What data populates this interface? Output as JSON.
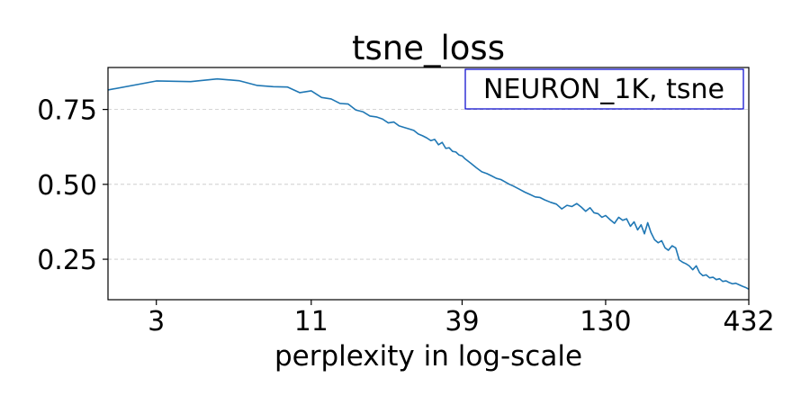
{
  "chart_data": {
    "type": "line",
    "title": "tsne_loss",
    "xlabel": "perplexity in log-scale",
    "ylabel": "",
    "x_scale": "log",
    "xlim": [
      2,
      432
    ],
    "ylim": [
      0.115,
      0.89
    ],
    "x_ticks": [
      3,
      11,
      39,
      130,
      432
    ],
    "y_ticks": [
      0.25,
      0.5,
      0.75
    ],
    "y_tick_labels": [
      "0.25",
      "0.50",
      "0.75"
    ],
    "grid": "y-dashed",
    "legend": {
      "label": "NEURON_1K, tsne",
      "placement": "top-right",
      "border_color": "#0000cc"
    },
    "series": [
      {
        "color": "#1f77b4",
        "x": [
          2,
          3,
          4,
          5,
          6,
          7,
          8,
          9,
          10,
          11,
          12,
          13,
          14,
          15,
          16,
          17,
          18,
          19,
          20,
          21,
          22,
          23,
          24,
          25,
          26,
          27,
          28,
          29,
          30,
          31,
          32,
          33,
          34,
          35,
          36,
          37,
          38,
          39,
          40,
          42,
          44,
          46,
          48,
          50,
          52,
          54,
          56,
          58,
          60,
          63,
          66,
          69,
          72,
          75,
          78,
          82,
          86,
          90,
          94,
          98,
          102,
          106,
          110,
          114,
          118,
          122,
          126,
          130,
          135,
          140,
          145,
          150,
          155,
          160,
          165,
          170,
          175,
          180,
          185,
          190,
          196,
          202,
          208,
          214,
          220,
          227,
          234,
          241,
          248,
          255,
          262,
          270,
          278,
          286,
          294,
          302,
          311,
          320,
          329,
          338,
          347,
          357,
          367,
          377,
          387,
          398,
          409,
          420,
          432
        ],
        "y": [
          0.815,
          0.845,
          0.843,
          0.852,
          0.846,
          0.83,
          0.826,
          0.825,
          0.806,
          0.812,
          0.79,
          0.785,
          0.77,
          0.768,
          0.748,
          0.742,
          0.728,
          0.725,
          0.718,
          0.705,
          0.708,
          0.695,
          0.69,
          0.685,
          0.68,
          0.668,
          0.662,
          0.655,
          0.646,
          0.65,
          0.632,
          0.64,
          0.62,
          0.622,
          0.61,
          0.608,
          0.598,
          0.595,
          0.585,
          0.57,
          0.555,
          0.542,
          0.536,
          0.528,
          0.52,
          0.516,
          0.508,
          0.5,
          0.494,
          0.484,
          0.474,
          0.466,
          0.458,
          0.456,
          0.448,
          0.44,
          0.434,
          0.418,
          0.43,
          0.426,
          0.436,
          0.424,
          0.41,
          0.422,
          0.405,
          0.402,
          0.39,
          0.396,
          0.382,
          0.37,
          0.39,
          0.38,
          0.385,
          0.36,
          0.375,
          0.348,
          0.365,
          0.335,
          0.372,
          0.34,
          0.315,
          0.305,
          0.312,
          0.288,
          0.28,
          0.295,
          0.288,
          0.248,
          0.24,
          0.235,
          0.228,
          0.215,
          0.228,
          0.205,
          0.195,
          0.198,
          0.188,
          0.19,
          0.182,
          0.185,
          0.176,
          0.178,
          0.172,
          0.168,
          0.17,
          0.165,
          0.16,
          0.156,
          0.15
        ]
      }
    ]
  }
}
